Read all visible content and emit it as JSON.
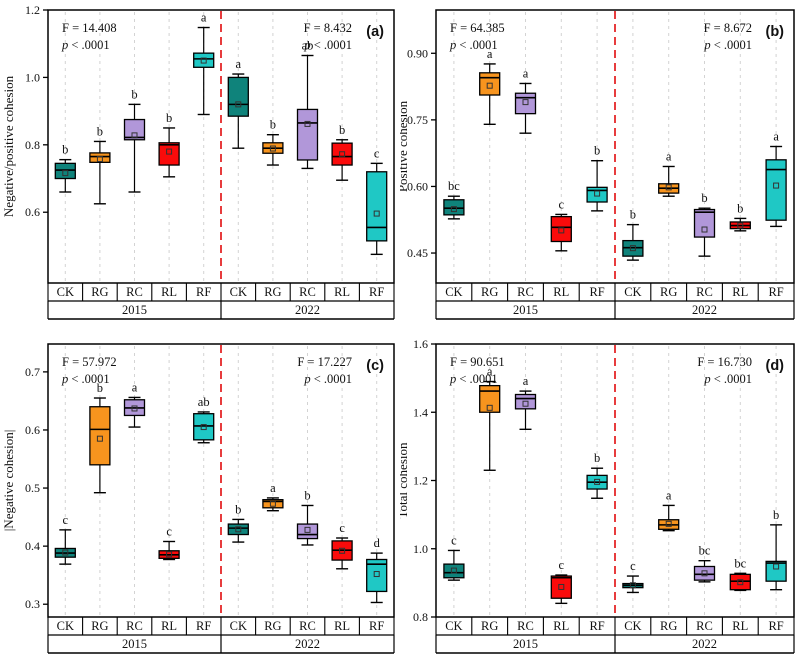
{
  "chart_data": {
    "type": "box",
    "categories": [
      "CK",
      "RG",
      "RC",
      "RL",
      "RF"
    ],
    "groups": [
      "2015",
      "2022"
    ],
    "colors": {
      "CK": "#0f837b",
      "RG": "#f7941e",
      "RC": "#b197d9",
      "RL": "#fa0b0b",
      "RF": "#1fc8c5"
    },
    "style": {
      "grid": "#d3d3d3",
      "divider": "#e31a1c",
      "frame": "#000000",
      "box_edge": "#000000"
    },
    "panels": [
      {
        "panel_label": "(a)",
        "ylabel": "Negative/positive cohesion",
        "ylim": [
          0.39,
          1.2
        ],
        "yticks": [
          {
            "value": 0.6,
            "label": "0.6"
          },
          {
            "value": 0.8,
            "label": "0.8"
          },
          {
            "value": 1.0,
            "label": "1.0"
          },
          {
            "value": 1.2,
            "label": "1.2"
          }
        ],
        "stats": [
          {
            "group": "2015",
            "F": "F = 14.408",
            "p": "p < .0001"
          },
          {
            "group": "2022",
            "F": "F = 8.432",
            "p": "p < .0001"
          }
        ],
        "boxes": [
          {
            "group": "2015",
            "cat": "CK",
            "letter": "b",
            "whisker_min": 0.66,
            "q1": 0.7,
            "median": 0.725,
            "q3": 0.745,
            "whisker_max": 0.756,
            "mean": 0.716
          },
          {
            "group": "2015",
            "cat": "RG",
            "letter": "b",
            "whisker_min": 0.625,
            "q1": 0.748,
            "median": 0.765,
            "q3": 0.776,
            "whisker_max": 0.81,
            "mean": 0.758
          },
          {
            "group": "2015",
            "cat": "RC",
            "letter": "b",
            "whisker_min": 0.66,
            "q1": 0.815,
            "median": 0.822,
            "q3": 0.875,
            "whisker_max": 0.92,
            "mean": 0.828
          },
          {
            "group": "2015",
            "cat": "RL",
            "letter": "b",
            "whisker_min": 0.705,
            "q1": 0.74,
            "median": 0.8,
            "q3": 0.806,
            "whisker_max": 0.85,
            "mean": 0.78
          },
          {
            "group": "2015",
            "cat": "RF",
            "letter": "a",
            "whisker_min": 0.89,
            "q1": 1.03,
            "median": 1.055,
            "q3": 1.072,
            "whisker_max": 1.148,
            "mean": 1.05
          },
          {
            "group": "2022",
            "cat": "CK",
            "letter": "a",
            "whisker_min": 0.79,
            "q1": 0.885,
            "median": 0.92,
            "q3": 1.0,
            "whisker_max": 1.01,
            "mean": 0.92
          },
          {
            "group": "2022",
            "cat": "RG",
            "letter": "b",
            "whisker_min": 0.74,
            "q1": 0.775,
            "median": 0.79,
            "q3": 0.806,
            "whisker_max": 0.83,
            "mean": 0.789
          },
          {
            "group": "2022",
            "cat": "RC",
            "letter": "ab",
            "whisker_min": 0.73,
            "q1": 0.755,
            "median": 0.865,
            "q3": 0.905,
            "whisker_max": 1.065,
            "mean": 0.862
          },
          {
            "group": "2022",
            "cat": "RL",
            "letter": "b",
            "whisker_min": 0.695,
            "q1": 0.74,
            "median": 0.765,
            "q3": 0.805,
            "whisker_max": 0.815,
            "mean": 0.772
          },
          {
            "group": "2022",
            "cat": "RF",
            "letter": "c",
            "whisker_min": 0.475,
            "q1": 0.515,
            "median": 0.555,
            "q3": 0.72,
            "whisker_max": 0.745,
            "mean": 0.596
          }
        ]
      },
      {
        "panel_label": "(b)",
        "ylabel": "Positive cohesion",
        "ylim": [
          0.3825,
          0.9975
        ],
        "yticks": [
          {
            "value": 0.45,
            "label": "0.45"
          },
          {
            "value": 0.6,
            "label": "0.60"
          },
          {
            "value": 0.75,
            "label": "0.75"
          },
          {
            "value": 0.9,
            "label": "0.90"
          }
        ],
        "stats": [
          {
            "group": "2015",
            "F": "F = 64.385",
            "p": "p < .0001"
          },
          {
            "group": "2022",
            "F": "F = 8.672",
            "p": "p < .0001"
          }
        ],
        "boxes": [
          {
            "group": "2015",
            "cat": "CK",
            "letter": "bc",
            "whisker_min": 0.527,
            "q1": 0.536,
            "median": 0.551,
            "q3": 0.57,
            "whisker_max": 0.578,
            "mean": 0.549
          },
          {
            "group": "2015",
            "cat": "RG",
            "letter": "a",
            "whisker_min": 0.74,
            "q1": 0.806,
            "median": 0.845,
            "q3": 0.856,
            "whisker_max": 0.876,
            "mean": 0.827
          },
          {
            "group": "2015",
            "cat": "RC",
            "letter": "a",
            "whisker_min": 0.72,
            "q1": 0.764,
            "median": 0.8,
            "q3": 0.81,
            "whisker_max": 0.832,
            "mean": 0.79
          },
          {
            "group": "2015",
            "cat": "RL",
            "letter": "c",
            "whisker_min": 0.455,
            "q1": 0.476,
            "median": 0.508,
            "q3": 0.532,
            "whisker_max": 0.537,
            "mean": 0.501
          },
          {
            "group": "2015",
            "cat": "RF",
            "letter": "b",
            "whisker_min": 0.545,
            "q1": 0.565,
            "median": 0.591,
            "q3": 0.598,
            "whisker_max": 0.658,
            "mean": 0.584
          },
          {
            "group": "2022",
            "cat": "CK",
            "letter": "b",
            "whisker_min": 0.434,
            "q1": 0.443,
            "median": 0.462,
            "q3": 0.478,
            "whisker_max": 0.514,
            "mean": 0.461
          },
          {
            "group": "2022",
            "cat": "RG",
            "letter": "a",
            "whisker_min": 0.578,
            "q1": 0.585,
            "median": 0.596,
            "q3": 0.606,
            "whisker_max": 0.645,
            "mean": 0.598
          },
          {
            "group": "2022",
            "cat": "RC",
            "letter": "b",
            "whisker_min": 0.443,
            "q1": 0.486,
            "median": 0.542,
            "q3": 0.548,
            "whisker_max": 0.551,
            "mean": 0.503
          },
          {
            "group": "2022",
            "cat": "RL",
            "letter": "b",
            "whisker_min": 0.5,
            "q1": 0.505,
            "median": 0.512,
            "q3": 0.52,
            "whisker_max": 0.528,
            "mean": 0.512
          },
          {
            "group": "2022",
            "cat": "RF",
            "letter": "a",
            "whisker_min": 0.51,
            "q1": 0.524,
            "median": 0.638,
            "q3": 0.66,
            "whisker_max": 0.69,
            "mean": 0.602
          }
        ]
      },
      {
        "panel_label": "(c)",
        "ylabel": "|Negative cohesion|",
        "ylim": [
          0.278,
          0.748
        ],
        "yticks": [
          {
            "value": 0.3,
            "label": "0.3"
          },
          {
            "value": 0.4,
            "label": "0.4"
          },
          {
            "value": 0.5,
            "label": "0.5"
          },
          {
            "value": 0.6,
            "label": "0.6"
          },
          {
            "value": 0.7,
            "label": "0.7"
          }
        ],
        "stats": [
          {
            "group": "2015",
            "F": "F = 57.972",
            "p": "p < .0001"
          },
          {
            "group": "2022",
            "F": "F = 17.227",
            "p": "p < .0001"
          }
        ],
        "boxes": [
          {
            "group": "2015",
            "cat": "CK",
            "letter": "c",
            "whisker_min": 0.369,
            "q1": 0.381,
            "median": 0.388,
            "q3": 0.396,
            "whisker_max": 0.428,
            "mean": 0.389
          },
          {
            "group": "2015",
            "cat": "RG",
            "letter": "b",
            "whisker_min": 0.492,
            "q1": 0.54,
            "median": 0.601,
            "q3": 0.64,
            "whisker_max": 0.655,
            "mean": 0.585
          },
          {
            "group": "2015",
            "cat": "RC",
            "letter": "a",
            "whisker_min": 0.605,
            "q1": 0.625,
            "median": 0.638,
            "q3": 0.652,
            "whisker_max": 0.656,
            "mean": 0.637
          },
          {
            "group": "2015",
            "cat": "RL",
            "letter": "c",
            "whisker_min": 0.377,
            "q1": 0.379,
            "median": 0.385,
            "q3": 0.392,
            "whisker_max": 0.408,
            "mean": 0.386
          },
          {
            "group": "2015",
            "cat": "RF",
            "letter": "ab",
            "whisker_min": 0.578,
            "q1": 0.583,
            "median": 0.607,
            "q3": 0.628,
            "whisker_max": 0.631,
            "mean": 0.605
          },
          {
            "group": "2022",
            "cat": "CK",
            "letter": "b",
            "whisker_min": 0.407,
            "q1": 0.42,
            "median": 0.431,
            "q3": 0.438,
            "whisker_max": 0.446,
            "mean": 0.429
          },
          {
            "group": "2022",
            "cat": "RG",
            "letter": "a",
            "whisker_min": 0.461,
            "q1": 0.466,
            "median": 0.477,
            "q3": 0.48,
            "whisker_max": 0.483,
            "mean": 0.473
          },
          {
            "group": "2022",
            "cat": "RC",
            "letter": "b",
            "whisker_min": 0.402,
            "q1": 0.413,
            "median": 0.42,
            "q3": 0.438,
            "whisker_max": 0.47,
            "mean": 0.428
          },
          {
            "group": "2022",
            "cat": "RL",
            "letter": "c",
            "whisker_min": 0.361,
            "q1": 0.376,
            "median": 0.393,
            "q3": 0.409,
            "whisker_max": 0.414,
            "mean": 0.392
          },
          {
            "group": "2022",
            "cat": "RF",
            "letter": "d",
            "whisker_min": 0.303,
            "q1": 0.322,
            "median": 0.369,
            "q3": 0.377,
            "whisker_max": 0.388,
            "mean": 0.352
          }
        ]
      },
      {
        "panel_label": "(d)",
        "ylabel": "Total cohesion",
        "ylim": [
          0.8,
          1.6
        ],
        "yticks": [
          {
            "value": 0.8,
            "label": "0.8"
          },
          {
            "value": 1.0,
            "label": "1.0"
          },
          {
            "value": 1.2,
            "label": "1.2"
          },
          {
            "value": 1.4,
            "label": "1.4"
          },
          {
            "value": 1.6,
            "label": "1.6"
          }
        ],
        "stats": [
          {
            "group": "2015",
            "F": "F = 90.651",
            "p": "p < .0001"
          },
          {
            "group": "2022",
            "F": "F = 16.730",
            "p": "p < .0001"
          }
        ],
        "boxes": [
          {
            "group": "2015",
            "cat": "CK",
            "letter": "c",
            "whisker_min": 0.908,
            "q1": 0.915,
            "median": 0.93,
            "q3": 0.955,
            "whisker_max": 0.995,
            "mean": 0.936
          },
          {
            "group": "2015",
            "cat": "RG",
            "letter": "a",
            "whisker_min": 1.23,
            "q1": 1.4,
            "median": 1.462,
            "q3": 1.478,
            "whisker_max": 1.49,
            "mean": 1.413
          },
          {
            "group": "2015",
            "cat": "RC",
            "letter": "a",
            "whisker_min": 1.35,
            "q1": 1.41,
            "median": 1.44,
            "q3": 1.452,
            "whisker_max": 1.462,
            "mean": 1.425
          },
          {
            "group": "2015",
            "cat": "RL",
            "letter": "c",
            "whisker_min": 0.84,
            "q1": 0.855,
            "median": 0.915,
            "q3": 0.92,
            "whisker_max": 0.923,
            "mean": 0.888
          },
          {
            "group": "2015",
            "cat": "RF",
            "letter": "b",
            "whisker_min": 1.148,
            "q1": 1.175,
            "median": 1.195,
            "q3": 1.215,
            "whisker_max": 1.236,
            "mean": 1.196
          },
          {
            "group": "2022",
            "cat": "CK",
            "letter": "c",
            "whisker_min": 0.872,
            "q1": 0.886,
            "median": 0.893,
            "q3": 0.898,
            "whisker_max": 0.92,
            "mean": 0.893
          },
          {
            "group": "2022",
            "cat": "RG",
            "letter": "a",
            "whisker_min": 1.053,
            "q1": 1.057,
            "median": 1.07,
            "q3": 1.085,
            "whisker_max": 1.127,
            "mean": 1.073
          },
          {
            "group": "2022",
            "cat": "RC",
            "letter": "bc",
            "whisker_min": 0.903,
            "q1": 0.908,
            "median": 0.925,
            "q3": 0.948,
            "whisker_max": 0.965,
            "mean": 0.928
          },
          {
            "group": "2022",
            "cat": "RL",
            "letter": "bc",
            "whisker_min": 0.878,
            "q1": 0.88,
            "median": 0.905,
            "q3": 0.925,
            "whisker_max": 0.928,
            "mean": 0.902
          },
          {
            "group": "2022",
            "cat": "RF",
            "letter": "b",
            "whisker_min": 0.88,
            "q1": 0.905,
            "median": 0.958,
            "q3": 0.963,
            "whisker_max": 1.07,
            "mean": 0.948
          }
        ]
      }
    ]
  }
}
